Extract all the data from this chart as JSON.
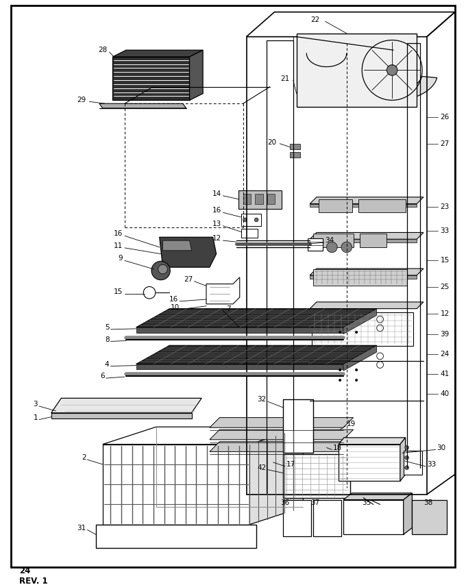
{
  "background_color": "#ffffff",
  "border_color": "#000000",
  "line_color": "#000000",
  "text_color": "#000000",
  "figsize": [
    6.8,
    8.57
  ],
  "dpi": 100,
  "page_label": "24\nREV. 1"
}
